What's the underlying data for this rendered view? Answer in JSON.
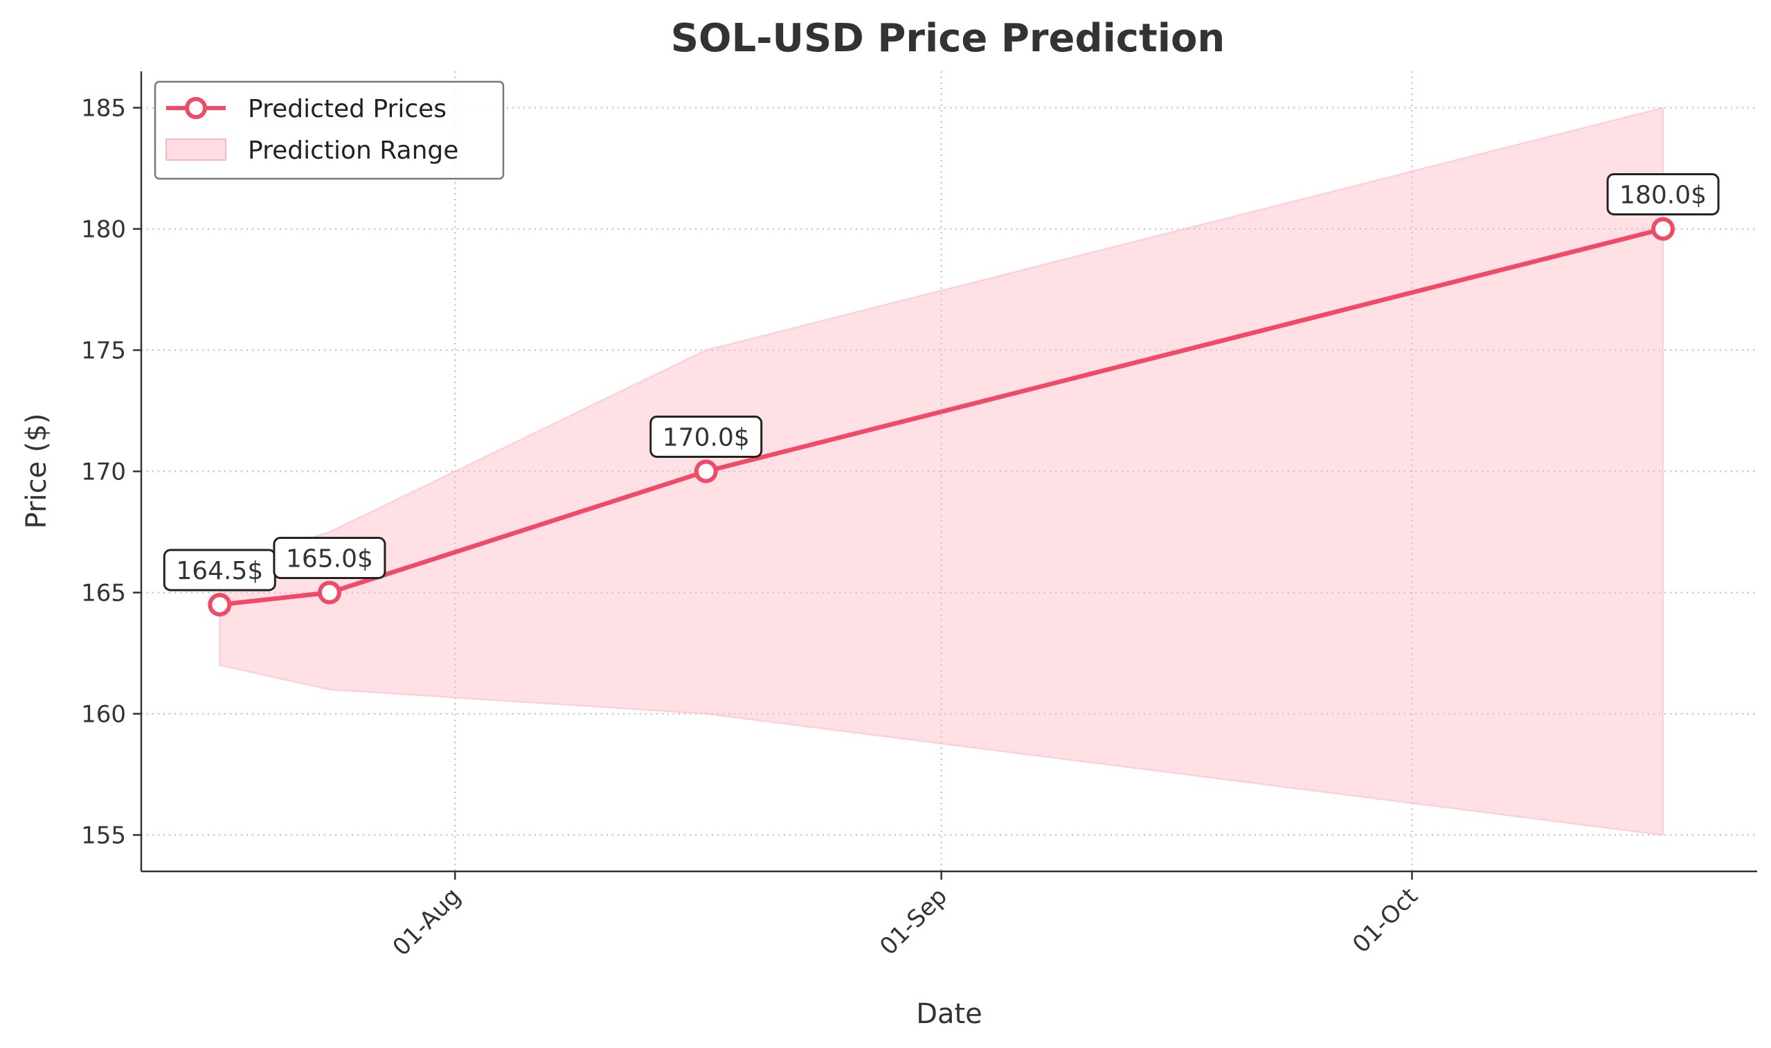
{
  "chart_data": {
    "type": "line",
    "title": "SOL-USD Price Prediction",
    "xlabel": "Date",
    "ylabel": "Price ($)",
    "x_ticks": [
      {
        "date": "2024-08-01",
        "label": "01-Aug"
      },
      {
        "date": "2024-09-01",
        "label": "01-Sep"
      },
      {
        "date": "2024-10-01",
        "label": "01-Oct"
      }
    ],
    "y_ticks": [
      155,
      160,
      165,
      170,
      175,
      180,
      185
    ],
    "xlim": [
      "2024-07-12",
      "2024-10-23"
    ],
    "ylim": [
      153.5,
      186.5
    ],
    "grid": true,
    "legend_position": "top-left",
    "series": [
      {
        "name": "Predicted Prices",
        "color": "#f04a66",
        "x": [
          "2024-07-17",
          "2024-07-24",
          "2024-08-17",
          "2024-10-17"
        ],
        "y": [
          164.5,
          165.0,
          170.0,
          180.0
        ],
        "labels": [
          "164.5$",
          "165.0$",
          "170.0$",
          "180.0$"
        ]
      }
    ],
    "range": {
      "name": "Prediction Range",
      "color": "#ffb6c1",
      "x": [
        "2024-07-17",
        "2024-07-24",
        "2024-08-17",
        "2024-10-17"
      ],
      "lower": [
        162.0,
        161.0,
        160.0,
        155.0
      ],
      "upper": [
        166.0,
        167.5,
        175.0,
        185.0
      ]
    }
  }
}
